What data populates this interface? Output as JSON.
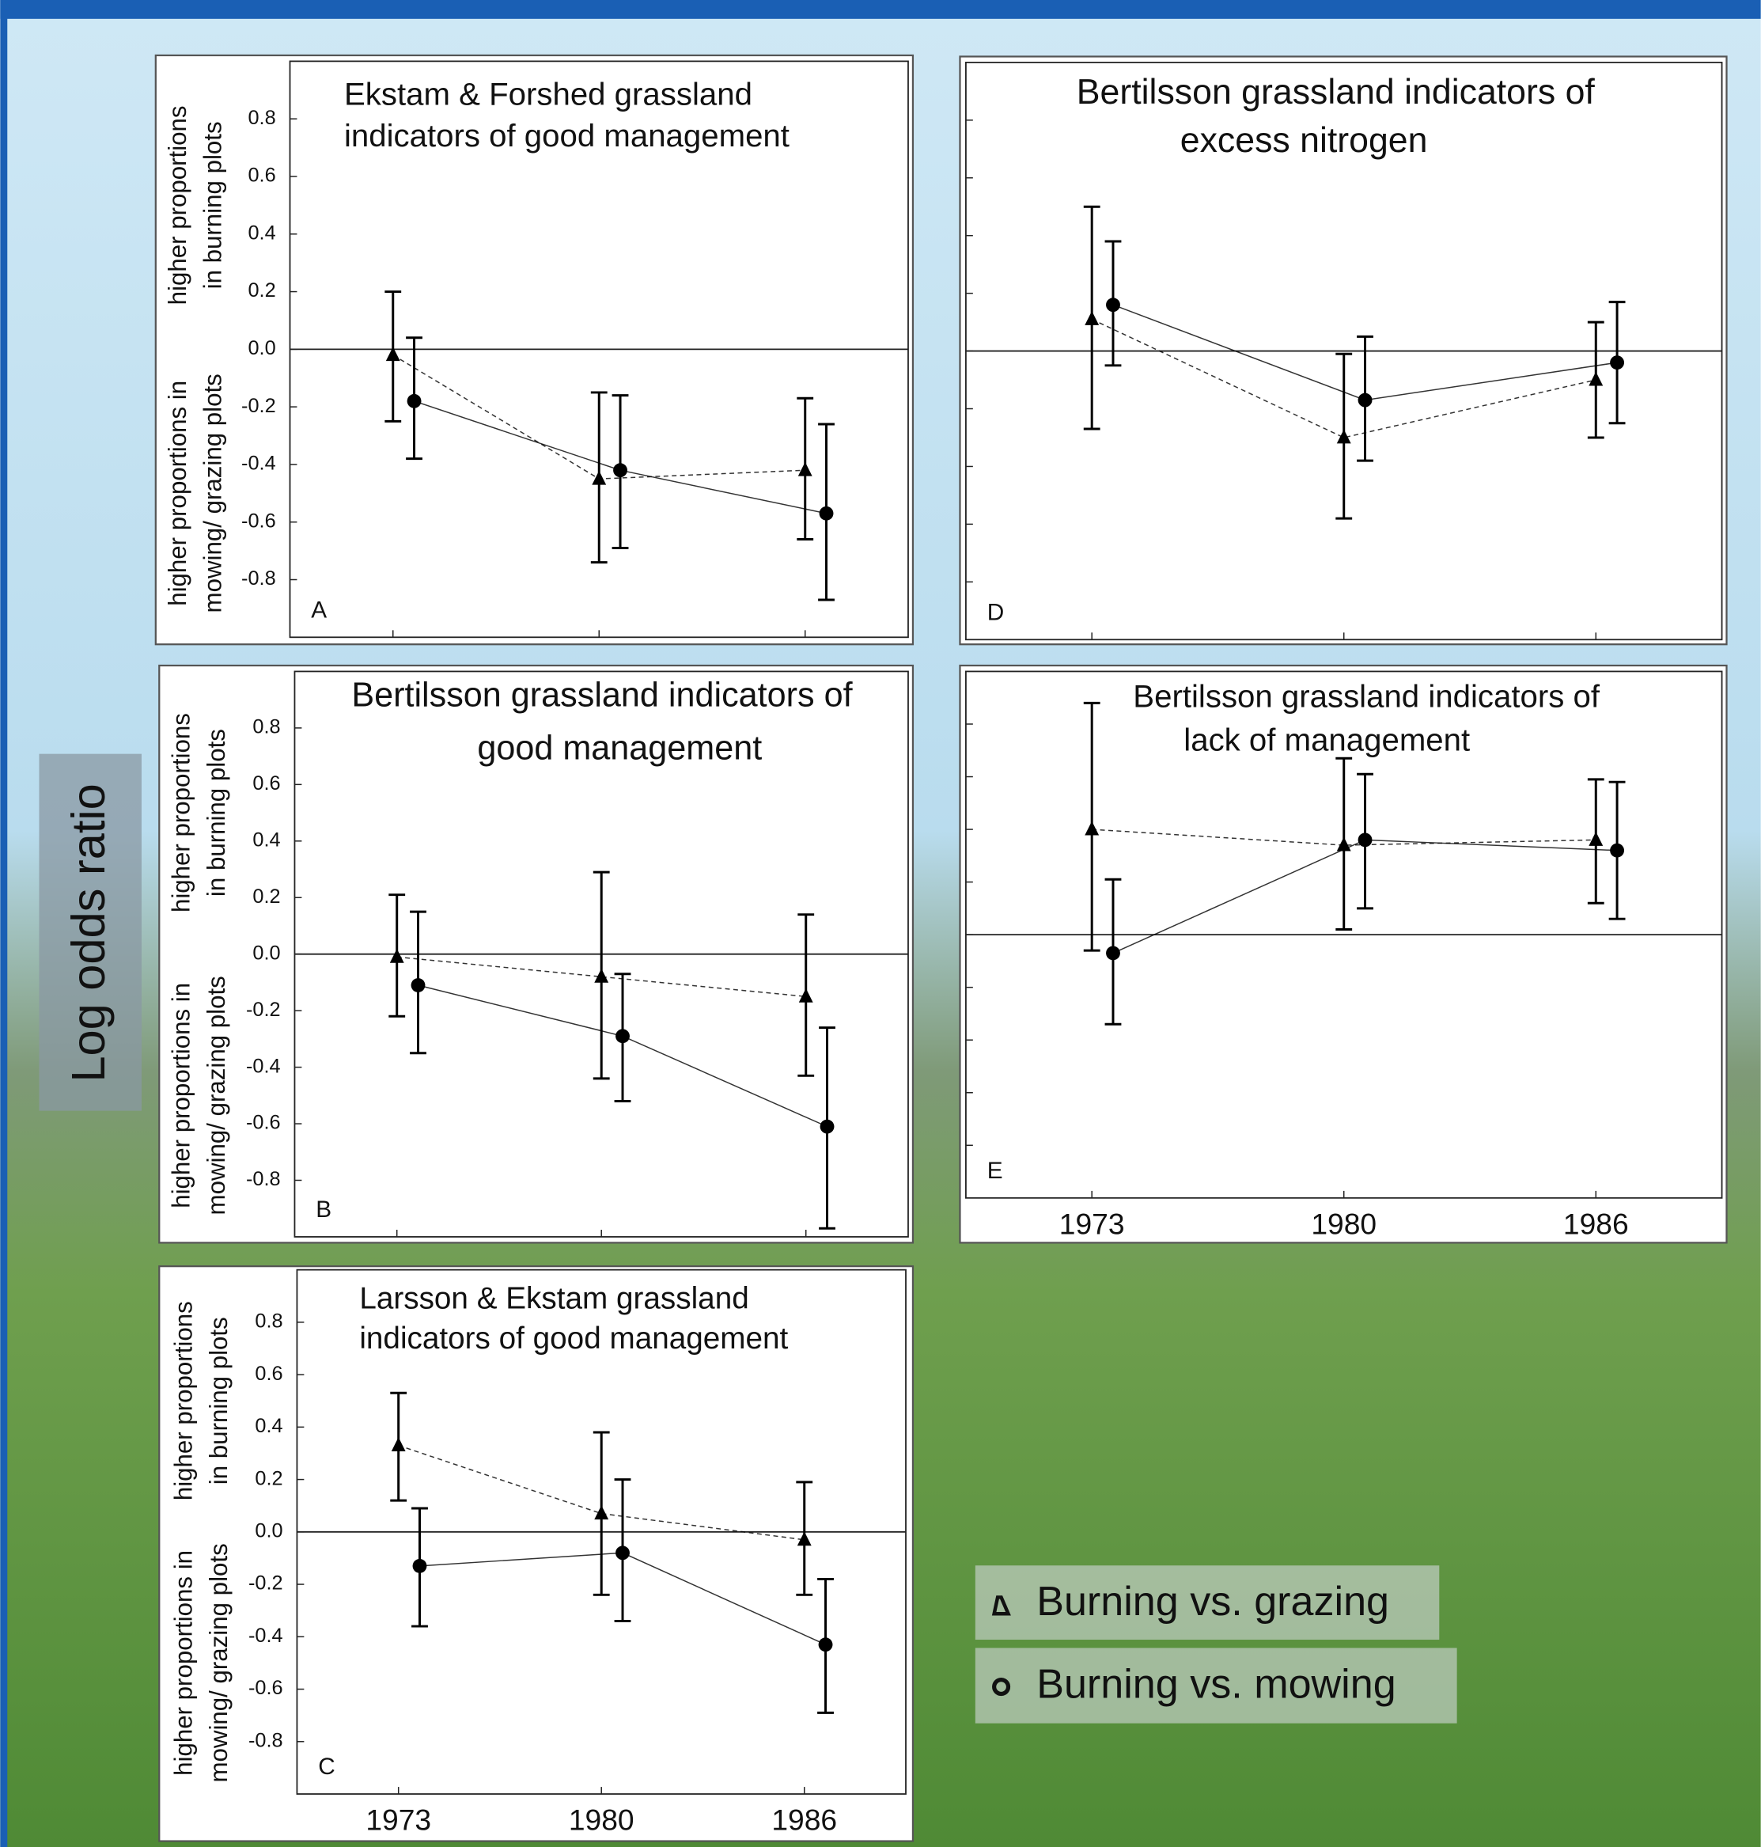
{
  "figure": {
    "ylabel": "Log odds ratio"
  },
  "chart_data": [
    {
      "type": "errorline",
      "label": "A",
      "title": [
        "Ekstam & Forshed grassland",
        "indicators of good management"
      ],
      "ylabel_upper": [
        "higher proportions",
        "in burning plots"
      ],
      "ylabel_lower": [
        "higher proportions in",
        "mowing/ grazing plots"
      ],
      "categories": [
        null,
        null,
        null
      ],
      "ylim": [
        -1,
        1
      ],
      "yticks": [
        -0.8,
        -0.6,
        -0.4,
        -0.2,
        {
          "value": 0,
          "label": "0.0"
        },
        0.2,
        0.4,
        0.6,
        0.8
      ],
      "show_ytick_labels": true,
      "zero_line": true,
      "series": [
        {
          "name": "Burning vs. grazing",
          "color": "#000000",
          "marker": "triangle",
          "linestyle": "dashed",
          "values": [
            -0.02,
            -0.45,
            -0.42
          ],
          "lower": [
            -0.25,
            -0.74,
            -0.66
          ],
          "upper": [
            0.2,
            -0.15,
            -0.17
          ]
        },
        {
          "name": "Burning vs. mowing",
          "color": "#000000",
          "marker": "circle",
          "linestyle": "solid",
          "values": [
            -0.18,
            -0.42,
            -0.57
          ],
          "lower": [
            -0.38,
            -0.69,
            -0.87
          ],
          "upper": [
            0.04,
            -0.16,
            -0.26
          ]
        }
      ]
    },
    {
      "type": "errorline",
      "label": "D",
      "title": [
        "Bertilsson grassland indicators of",
        "excess nitrogen"
      ],
      "categories": [
        null,
        null,
        null
      ],
      "ylim": [
        -1,
        1
      ],
      "yticks": [
        -0.8,
        -0.6,
        -0.4,
        -0.2,
        0,
        0.2,
        0.4,
        0.6,
        0.8
      ],
      "show_ytick_labels": false,
      "zero_line": true,
      "series": [
        {
          "name": "Burning vs. grazing",
          "color": "#000000",
          "marker": "triangle",
          "linestyle": "dashed",
          "values": [
            0.11,
            -0.3,
            -0.1
          ],
          "lower": [
            -0.27,
            -0.58,
            -0.3
          ],
          "upper": [
            0.5,
            -0.01,
            0.1
          ]
        },
        {
          "name": "Burning vs. mowing",
          "color": "#000000",
          "marker": "circle",
          "linestyle": "solid",
          "values": [
            0.16,
            -0.17,
            -0.04
          ],
          "lower": [
            -0.05,
            -0.38,
            -0.25
          ],
          "upper": [
            0.38,
            0.05,
            0.17
          ]
        }
      ]
    },
    {
      "type": "errorline",
      "label": "B",
      "title": [
        "Bertilsson grassland indicators of",
        "good management"
      ],
      "ylabel_upper": [
        "higher proportions",
        "in burning plots"
      ],
      "ylabel_lower": [
        "higher proportions in",
        "mowing/ grazing plots"
      ],
      "categories": [
        null,
        null,
        null
      ],
      "ylim": [
        -1,
        1
      ],
      "yticks": [
        -0.8,
        -0.6,
        -0.4,
        -0.2,
        {
          "value": 0,
          "label": "0.0"
        },
        0.2,
        0.4,
        0.6,
        0.8
      ],
      "show_ytick_labels": true,
      "zero_line": true,
      "series": [
        {
          "name": "Burning vs. grazing",
          "color": "#000000",
          "marker": "triangle",
          "linestyle": "dashed",
          "values": [
            -0.01,
            -0.08,
            -0.15
          ],
          "lower": [
            -0.22,
            -0.44,
            -0.43
          ],
          "upper": [
            0.21,
            0.29,
            0.14
          ]
        },
        {
          "name": "Burning vs. mowing",
          "color": "#000000",
          "marker": "circle",
          "linestyle": "solid",
          "values": [
            -0.11,
            -0.29,
            -0.61
          ],
          "lower": [
            -0.35,
            -0.52,
            -0.97
          ],
          "upper": [
            0.15,
            -0.07,
            -0.26
          ]
        }
      ]
    },
    {
      "type": "errorline",
      "label": "E",
      "title": [
        "Bertilsson grassland indicators of",
        "lack of management"
      ],
      "categories": [
        "1973",
        "1980",
        "1986"
      ],
      "ylim": [
        -1,
        1
      ],
      "yticks": [
        -0.8,
        -0.6,
        -0.4,
        -0.2,
        0,
        0.2,
        0.4,
        0.6,
        0.8
      ],
      "show_ytick_labels": false,
      "zero_line": true,
      "series": [
        {
          "name": "Burning vs. grazing",
          "color": "#000000",
          "marker": "triangle",
          "linestyle": "dashed",
          "values": [
            0.4,
            0.34,
            0.36
          ],
          "lower": [
            -0.06,
            0.02,
            0.12
          ],
          "upper": [
            0.88,
            0.67,
            0.59
          ]
        },
        {
          "name": "Burning vs. mowing",
          "color": "#000000",
          "marker": "circle",
          "linestyle": "solid",
          "values": [
            -0.07,
            0.36,
            0.32
          ],
          "lower": [
            -0.34,
            0.1,
            0.06
          ],
          "upper": [
            0.21,
            0.61,
            0.58
          ]
        }
      ]
    },
    {
      "type": "errorline",
      "label": "C",
      "title": [
        "Larsson & Ekstam grassland",
        "indicators of good management"
      ],
      "ylabel_upper": [
        "higher proportions",
        "in burning plots"
      ],
      "ylabel_lower": [
        "higher proportions in",
        "mowing/ grazing plots"
      ],
      "categories": [
        "1973",
        "1980",
        "1986"
      ],
      "ylim": [
        -1,
        1
      ],
      "yticks": [
        -0.8,
        -0.6,
        -0.4,
        -0.2,
        {
          "value": 0,
          "label": "0.0"
        },
        0.2,
        0.4,
        0.6,
        0.8
      ],
      "show_ytick_labels": true,
      "zero_line": true,
      "series": [
        {
          "name": "Burning vs. grazing",
          "color": "#000000",
          "marker": "triangle",
          "linestyle": "dashed",
          "values": [
            0.33,
            0.07,
            -0.03
          ],
          "lower": [
            0.12,
            -0.24,
            -0.24
          ],
          "upper": [
            0.53,
            0.38,
            0.19
          ]
        },
        {
          "name": "Burning vs. mowing",
          "color": "#000000",
          "marker": "circle",
          "linestyle": "solid",
          "values": [
            -0.13,
            -0.08,
            -0.43
          ],
          "lower": [
            -0.36,
            -0.34,
            -0.69
          ],
          "upper": [
            0.09,
            0.2,
            -0.18
          ]
        }
      ]
    }
  ]
}
